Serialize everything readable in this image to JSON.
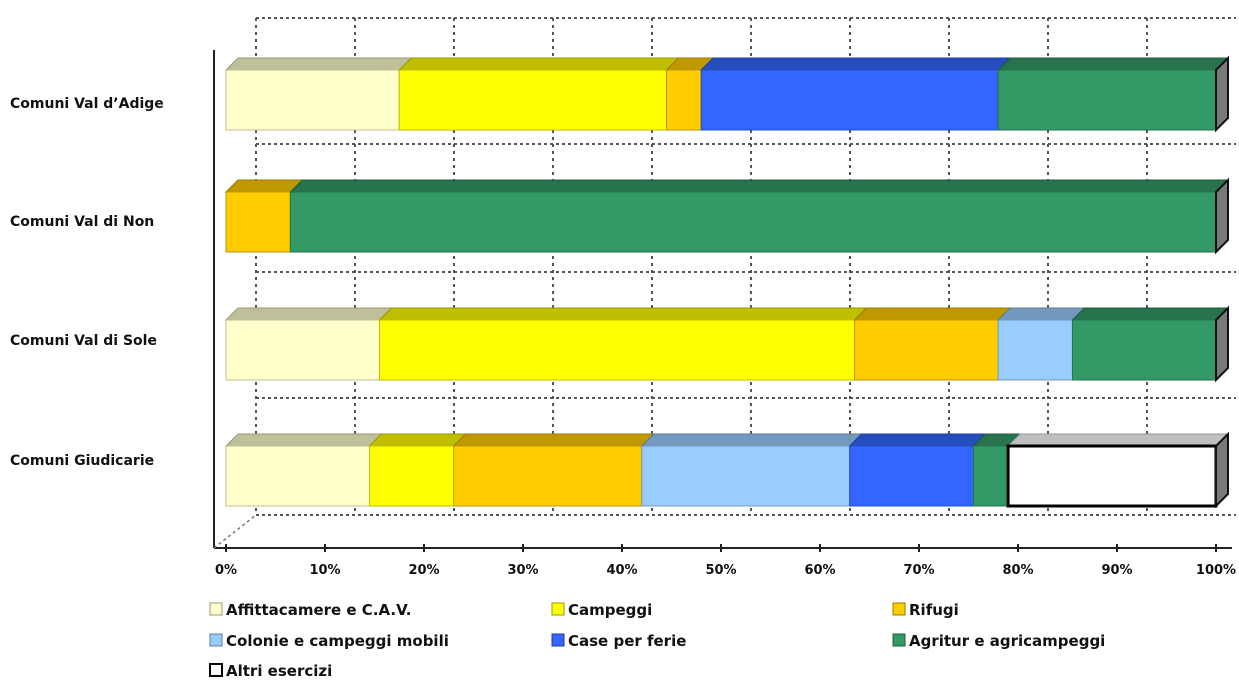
{
  "chart_data": {
    "type": "bar",
    "orientation": "horizontal",
    "stacked": "percent",
    "style": "3d",
    "categories": [
      "Comuni Val d’Adige",
      "Comuni Val di Non",
      "Comuni Val di Sole",
      "Comuni Giudicarie"
    ],
    "x_ticks": [
      "0%",
      "10%",
      "20%",
      "30%",
      "40%",
      "50%",
      "60%",
      "70%",
      "80%",
      "90%",
      "100%"
    ],
    "xlim": [
      0,
      100
    ],
    "grid": true,
    "legend_position": "bottom",
    "series": [
      {
        "name": "Affittacamere e C.A.V.",
        "color": "#ffffcc",
        "values": [
          17.5,
          0,
          15.5,
          14.5
        ]
      },
      {
        "name": "Campeggi",
        "color": "#ffff00",
        "values": [
          27,
          0,
          48,
          8.5
        ]
      },
      {
        "name": "Rifugi",
        "color": "#ffcc00",
        "values": [
          3.5,
          6.5,
          14.5,
          19
        ]
      },
      {
        "name": "Colonie e campeggi mobili",
        "color": "#99ccff",
        "values": [
          0,
          0,
          7.5,
          21
        ]
      },
      {
        "name": "Case per ferie",
        "color": "#3366ff",
        "values": [
          30,
          0,
          0,
          12.5
        ]
      },
      {
        "name": "Agritur e agricampeggi",
        "color": "#339966",
        "values": [
          22,
          93.5,
          14.5,
          3.5
        ]
      },
      {
        "name": "Altri esercizi",
        "color": "#ffffff",
        "values": [
          0,
          0,
          0,
          21
        ]
      }
    ]
  }
}
